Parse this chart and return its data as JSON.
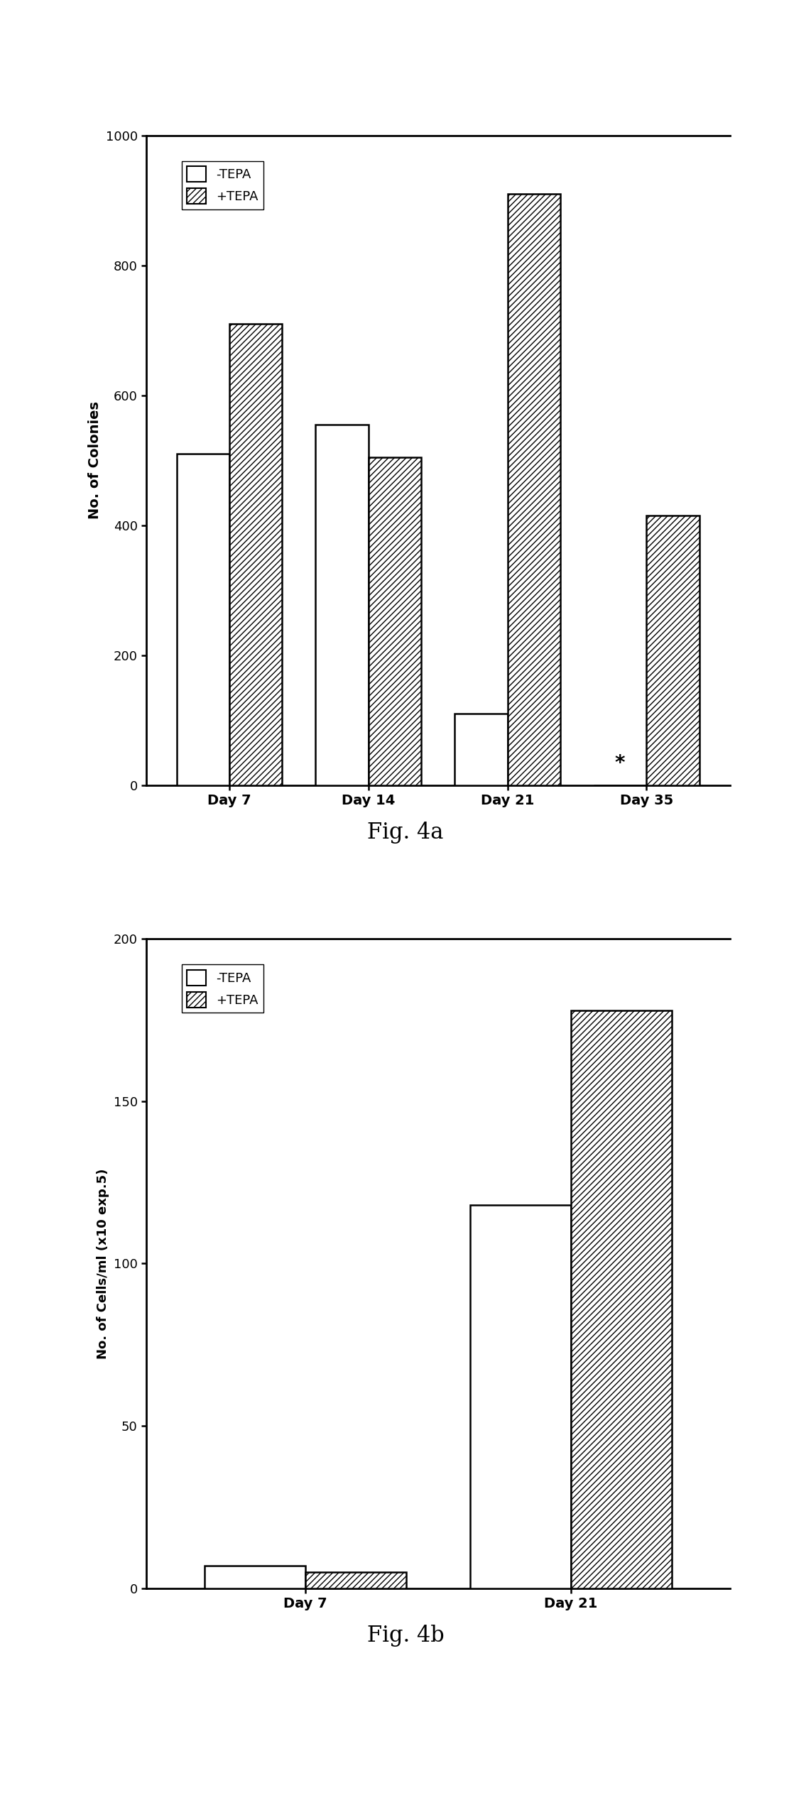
{
  "fig4a": {
    "caption": "Fig. 4a",
    "ylabel": "No. of Colonies",
    "ylim": [
      0,
      1000
    ],
    "yticks": [
      0,
      200,
      400,
      600,
      800,
      1000
    ],
    "groups": [
      "Day 7",
      "Day 14",
      "Day 21",
      "Day 35"
    ],
    "minus_tepa": [
      510,
      555,
      110,
      0
    ],
    "plus_tepa": [
      710,
      505,
      910,
      415
    ],
    "star_group": 3
  },
  "fig4b": {
    "caption": "Fig. 4b",
    "ylabel": "No. of Cells/ml (x10 exp.5)",
    "ylim": [
      0,
      200
    ],
    "yticks": [
      0,
      50,
      100,
      150,
      200
    ],
    "groups": [
      "Day 7",
      "Day 21"
    ],
    "minus_tepa": [
      7,
      118
    ],
    "plus_tepa": [
      5,
      178
    ]
  },
  "bar_width": 0.38,
  "hatch_pattern": "////",
  "face_color_minus": "white",
  "face_color_plus": "white",
  "edge_color": "black",
  "background_color": "white",
  "legend_minus": "-TEPA",
  "legend_plus": "+TEPA",
  "figsize": [
    11.42,
    25.42
  ],
  "dpi": 100
}
